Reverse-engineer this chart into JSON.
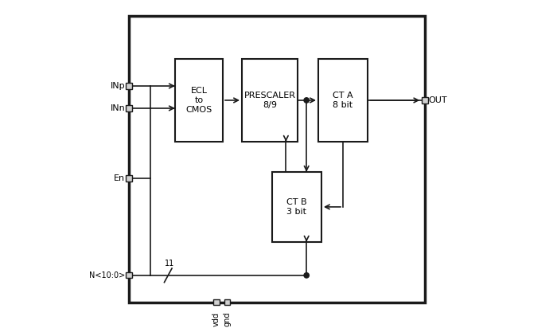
{
  "bg_color": "#ffffff",
  "box_edge_color": "#1a1a1a",
  "line_color": "#1a1a1a",
  "ecl_label": "ECL\nto\nCMOS",
  "prescaler_label": "PRESCALER\n8/9",
  "cta_label": "CT A\n8 bit",
  "ctb_label": "CT B\n3 bit",
  "inp_label": "INp",
  "inn_label": "INn",
  "en_label": "En",
  "n_label": "N<10:0>",
  "out_label": "OUT",
  "n_bus_label": "11",
  "vdd_label": "vdd",
  "gnd_label": "gnd",
  "font_size_box": 8,
  "font_size_label": 8,
  "font_size_bus": 7
}
